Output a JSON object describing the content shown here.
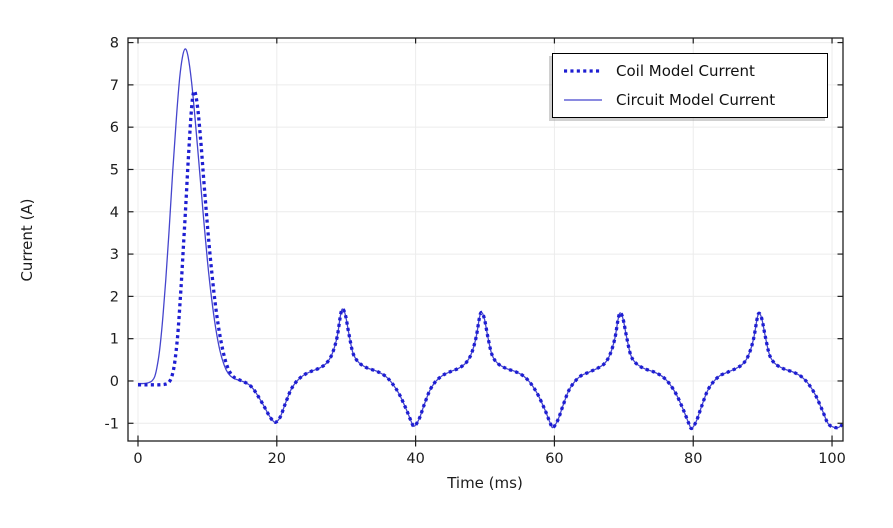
{
  "figure": {
    "background": "#ffffff",
    "frame_color": "#1f1f1f",
    "grid_color": "#ececec",
    "tick_label_color": "#1c1c1c"
  },
  "chart_data": {
    "type": "line",
    "title": "",
    "xlabel": "Time (ms)",
    "ylabel": "Current (A)",
    "xlim": [
      -1.44,
      101.58
    ],
    "ylim": [
      -1.419,
      8.108
    ],
    "xticks": [
      0,
      20,
      40,
      60,
      80,
      100
    ],
    "yticks": [
      -1,
      0,
      1,
      2,
      3,
      4,
      5,
      6,
      7,
      8
    ],
    "grid": true,
    "legend_position": "top-right",
    "series": [
      {
        "name": "Coil Model Current",
        "style": "dotted",
        "color": "#1e1ed2",
        "width": 3.3,
        "points": [
          [
            0,
            -0.09
          ],
          [
            1,
            -0.09
          ],
          [
            2,
            -0.09
          ],
          [
            3,
            -0.09
          ],
          [
            3.8,
            -0.08
          ],
          [
            4.4,
            -0.04
          ],
          [
            4.9,
            0.12
          ],
          [
            5.3,
            0.45
          ],
          [
            5.7,
            1.05
          ],
          [
            6.1,
            1.95
          ],
          [
            6.5,
            3.05
          ],
          [
            6.9,
            4.2
          ],
          [
            7.3,
            5.4
          ],
          [
            7.7,
            6.4
          ],
          [
            8.0,
            6.82
          ],
          [
            8.3,
            6.78
          ],
          [
            8.7,
            6.3
          ],
          [
            9.1,
            5.55
          ],
          [
            9.6,
            4.5
          ],
          [
            10.2,
            3.3
          ],
          [
            10.8,
            2.3
          ],
          [
            11.4,
            1.5
          ],
          [
            12,
            0.9
          ],
          [
            12.6,
            0.48
          ],
          [
            13.2,
            0.22
          ],
          [
            13.9,
            0.08
          ],
          [
            14.7,
            0.02
          ],
          [
            15.5,
            -0.04
          ],
          [
            16.3,
            -0.13
          ],
          [
            17,
            -0.28
          ],
          [
            18,
            -0.55
          ],
          [
            18.9,
            -0.82
          ],
          [
            19.5,
            -0.95
          ],
          [
            19.9,
            -0.97
          ],
          [
            20.5,
            -0.85
          ],
          [
            21.2,
            -0.55
          ],
          [
            22,
            -0.22
          ],
          [
            22.8,
            -0.02
          ],
          [
            23.8,
            0.13
          ],
          [
            25,
            0.23
          ],
          [
            26.2,
            0.31
          ],
          [
            27.2,
            0.43
          ],
          [
            28,
            0.65
          ],
          [
            28.7,
            1.05
          ],
          [
            29.2,
            1.58
          ],
          [
            29.5,
            1.7
          ],
          [
            29.9,
            1.55
          ],
          [
            30.4,
            1.1
          ],
          [
            31,
            0.65
          ],
          [
            31.8,
            0.44
          ],
          [
            33,
            0.31
          ],
          [
            34.4,
            0.23
          ],
          [
            35.6,
            0.12
          ],
          [
            36.6,
            -0.05
          ],
          [
            37.6,
            -0.3
          ],
          [
            38.6,
            -0.65
          ],
          [
            39.4,
            -0.97
          ],
          [
            39.8,
            -1.07
          ],
          [
            40.5,
            -0.9
          ],
          [
            41.2,
            -0.58
          ],
          [
            42,
            -0.24
          ],
          [
            42.8,
            -0.03
          ],
          [
            43.8,
            0.12
          ],
          [
            45,
            0.22
          ],
          [
            46.2,
            0.3
          ],
          [
            47.2,
            0.42
          ],
          [
            48,
            0.63
          ],
          [
            48.7,
            1.02
          ],
          [
            49.2,
            1.5
          ],
          [
            49.5,
            1.62
          ],
          [
            49.9,
            1.48
          ],
          [
            50.4,
            1.05
          ],
          [
            51,
            0.62
          ],
          [
            51.8,
            0.42
          ],
          [
            53,
            0.3
          ],
          [
            54.4,
            0.22
          ],
          [
            55.6,
            0.11
          ],
          [
            56.6,
            -0.06
          ],
          [
            57.6,
            -0.32
          ],
          [
            58.6,
            -0.67
          ],
          [
            59.4,
            -1.0
          ],
          [
            59.8,
            -1.1
          ],
          [
            60.5,
            -0.92
          ],
          [
            61.2,
            -0.6
          ],
          [
            62,
            -0.25
          ],
          [
            62.8,
            -0.04
          ],
          [
            63.8,
            0.12
          ],
          [
            65,
            0.21
          ],
          [
            66.2,
            0.3
          ],
          [
            67.2,
            0.41
          ],
          [
            68,
            0.62
          ],
          [
            68.7,
            1.0
          ],
          [
            69.2,
            1.48
          ],
          [
            69.5,
            1.61
          ],
          [
            69.9,
            1.46
          ],
          [
            70.4,
            1.04
          ],
          [
            71,
            0.61
          ],
          [
            71.8,
            0.41
          ],
          [
            73,
            0.29
          ],
          [
            74.4,
            0.21
          ],
          [
            75.6,
            0.1
          ],
          [
            76.6,
            -0.07
          ],
          [
            77.6,
            -0.33
          ],
          [
            78.6,
            -0.69
          ],
          [
            79.4,
            -1.02
          ],
          [
            79.8,
            -1.12
          ],
          [
            80.5,
            -0.93
          ],
          [
            81.2,
            -0.6
          ],
          [
            82,
            -0.25
          ],
          [
            82.8,
            -0.04
          ],
          [
            83.8,
            0.12
          ],
          [
            85,
            0.21
          ],
          [
            86.2,
            0.3
          ],
          [
            87.2,
            0.41
          ],
          [
            88,
            0.62
          ],
          [
            88.7,
            1.0
          ],
          [
            89.2,
            1.47
          ],
          [
            89.5,
            1.6
          ],
          [
            89.9,
            1.46
          ],
          [
            90.4,
            1.04
          ],
          [
            91,
            0.61
          ],
          [
            91.8,
            0.41
          ],
          [
            93,
            0.29
          ],
          [
            94.4,
            0.21
          ],
          [
            95.6,
            0.1
          ],
          [
            96.6,
            -0.07
          ],
          [
            97.6,
            -0.33
          ],
          [
            98.6,
            -0.69
          ],
          [
            99.4,
            -1.0
          ],
          [
            100.2,
            -1.09
          ],
          [
            100.9,
            -1.1
          ],
          [
            101.5,
            -1.03
          ]
        ]
      },
      {
        "name": "Circuit Model Current",
        "style": "solid",
        "color": "#4545cd",
        "width": 1.3,
        "points": [
          [
            0,
            -0.06
          ],
          [
            0.8,
            -0.06
          ],
          [
            1.5,
            -0.04
          ],
          [
            2,
            0.0
          ],
          [
            2.4,
            0.1
          ],
          [
            2.8,
            0.38
          ],
          [
            3.2,
            0.85
          ],
          [
            3.6,
            1.55
          ],
          [
            4,
            2.4
          ],
          [
            4.5,
            3.6
          ],
          [
            5,
            4.95
          ],
          [
            5.5,
            6.15
          ],
          [
            6,
            7.15
          ],
          [
            6.4,
            7.65
          ],
          [
            6.8,
            7.85
          ],
          [
            7.2,
            7.68
          ],
          [
            7.7,
            7.1
          ],
          [
            8.2,
            6.25
          ],
          [
            8.8,
            5.1
          ],
          [
            9.4,
            3.95
          ],
          [
            10,
            2.85
          ],
          [
            10.6,
            1.95
          ],
          [
            11.2,
            1.25
          ],
          [
            11.8,
            0.72
          ],
          [
            12.4,
            0.38
          ],
          [
            13,
            0.18
          ],
          [
            13.7,
            0.07
          ],
          [
            14.5,
            0.02
          ],
          [
            15.5,
            -0.04
          ],
          [
            16.3,
            -0.13
          ],
          [
            17,
            -0.28
          ],
          [
            18,
            -0.55
          ],
          [
            18.9,
            -0.82
          ],
          [
            19.5,
            -0.95
          ],
          [
            19.9,
            -0.97
          ],
          [
            20.5,
            -0.85
          ],
          [
            21.2,
            -0.55
          ],
          [
            22,
            -0.22
          ],
          [
            22.8,
            -0.02
          ],
          [
            23.8,
            0.13
          ],
          [
            25,
            0.23
          ],
          [
            26.2,
            0.31
          ],
          [
            27.2,
            0.43
          ],
          [
            28,
            0.65
          ],
          [
            28.7,
            1.05
          ],
          [
            29.2,
            1.58
          ],
          [
            29.5,
            1.7
          ],
          [
            29.9,
            1.55
          ],
          [
            30.4,
            1.1
          ],
          [
            31,
            0.65
          ],
          [
            31.8,
            0.44
          ],
          [
            33,
            0.31
          ],
          [
            34.4,
            0.23
          ],
          [
            35.6,
            0.12
          ],
          [
            36.6,
            -0.05
          ],
          [
            37.6,
            -0.3
          ],
          [
            38.6,
            -0.65
          ],
          [
            39.4,
            -0.97
          ],
          [
            39.8,
            -1.07
          ],
          [
            40.5,
            -0.9
          ],
          [
            41.2,
            -0.58
          ],
          [
            42,
            -0.24
          ],
          [
            42.8,
            -0.03
          ],
          [
            43.8,
            0.12
          ],
          [
            45,
            0.22
          ],
          [
            46.2,
            0.3
          ],
          [
            47.2,
            0.42
          ],
          [
            48,
            0.63
          ],
          [
            48.7,
            1.02
          ],
          [
            49.2,
            1.5
          ],
          [
            49.5,
            1.62
          ],
          [
            49.9,
            1.48
          ],
          [
            50.4,
            1.05
          ],
          [
            51,
            0.62
          ],
          [
            51.8,
            0.42
          ],
          [
            53,
            0.3
          ],
          [
            54.4,
            0.22
          ],
          [
            55.6,
            0.11
          ],
          [
            56.6,
            -0.06
          ],
          [
            57.6,
            -0.32
          ],
          [
            58.6,
            -0.67
          ],
          [
            59.4,
            -1.0
          ],
          [
            59.8,
            -1.1
          ],
          [
            60.5,
            -0.92
          ],
          [
            61.2,
            -0.6
          ],
          [
            62,
            -0.25
          ],
          [
            62.8,
            -0.04
          ],
          [
            63.8,
            0.12
          ],
          [
            65,
            0.21
          ],
          [
            66.2,
            0.3
          ],
          [
            67.2,
            0.41
          ],
          [
            68,
            0.62
          ],
          [
            68.7,
            1.0
          ],
          [
            69.2,
            1.48
          ],
          [
            69.5,
            1.61
          ],
          [
            69.9,
            1.46
          ],
          [
            70.4,
            1.04
          ],
          [
            71,
            0.61
          ],
          [
            71.8,
            0.41
          ],
          [
            73,
            0.29
          ],
          [
            74.4,
            0.21
          ],
          [
            75.6,
            0.1
          ],
          [
            76.6,
            -0.07
          ],
          [
            77.6,
            -0.33
          ],
          [
            78.6,
            -0.69
          ],
          [
            79.4,
            -1.02
          ],
          [
            79.8,
            -1.12
          ],
          [
            80.5,
            -0.93
          ],
          [
            81.2,
            -0.6
          ],
          [
            82,
            -0.25
          ],
          [
            82.8,
            -0.04
          ],
          [
            83.8,
            0.12
          ],
          [
            85,
            0.21
          ],
          [
            86.2,
            0.3
          ],
          [
            87.2,
            0.41
          ],
          [
            88,
            0.62
          ],
          [
            88.7,
            1.0
          ],
          [
            89.2,
            1.47
          ],
          [
            89.5,
            1.6
          ],
          [
            89.9,
            1.46
          ],
          [
            90.4,
            1.04
          ],
          [
            91,
            0.61
          ],
          [
            91.8,
            0.41
          ],
          [
            93,
            0.29
          ],
          [
            94.4,
            0.21
          ],
          [
            95.6,
            0.1
          ],
          [
            96.6,
            -0.07
          ],
          [
            97.6,
            -0.33
          ],
          [
            98.6,
            -0.69
          ],
          [
            99.4,
            -1.0
          ],
          [
            100.2,
            -1.09
          ],
          [
            100.9,
            -1.1
          ],
          [
            101.5,
            -1.03
          ]
        ]
      }
    ]
  },
  "legend": {
    "items": [
      {
        "label": "Coil Model Current"
      },
      {
        "label": "Circuit Model Current"
      }
    ]
  }
}
